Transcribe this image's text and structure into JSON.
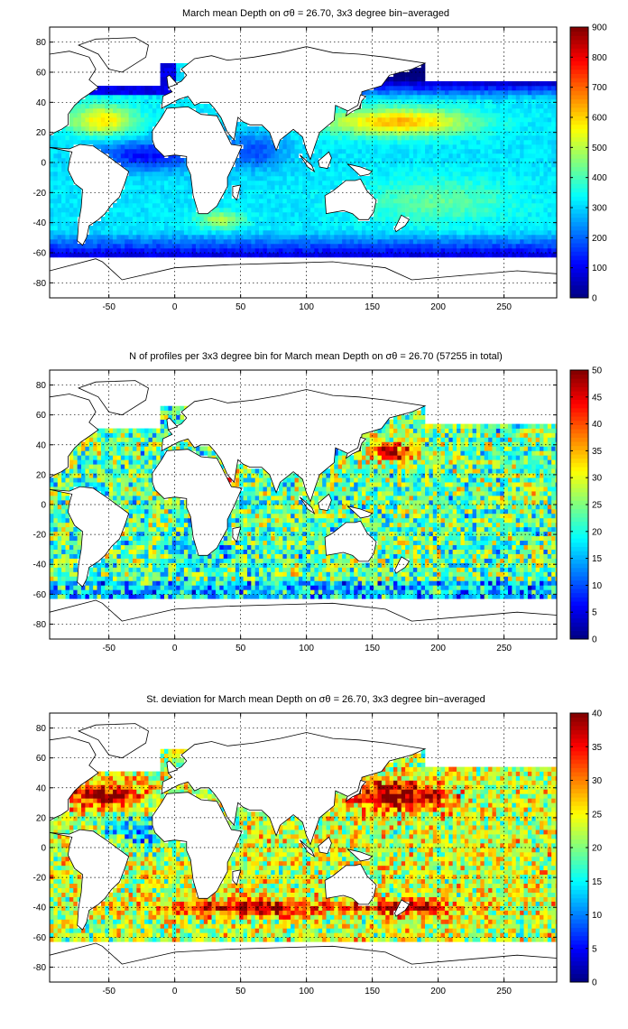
{
  "chart_data": [
    {
      "type": "heatmap",
      "title": "March mean Depth on σθ = 26.70, 3x3 degree bin−averaged",
      "xlim": [
        -95,
        290
      ],
      "ylim": [
        -90,
        90
      ],
      "xticks": [
        -50,
        0,
        50,
        100,
        150,
        200,
        250
      ],
      "yticks": [
        -80,
        -60,
        -40,
        -20,
        0,
        20,
        40,
        60,
        80
      ],
      "colorbar": {
        "min": 0,
        "max": 900,
        "ticks": [
          0,
          100,
          200,
          300,
          400,
          500,
          600,
          700,
          800,
          900
        ],
        "colormap": "jet"
      },
      "grid": true,
      "field": "depth",
      "value_range": [
        0,
        900
      ]
    },
    {
      "type": "heatmap",
      "title": "N of profiles per 3x3 degree bin for March mean Depth on σθ = 26.70 (57255 in total)",
      "xlim": [
        -95,
        290
      ],
      "ylim": [
        -90,
        90
      ],
      "xticks": [
        -50,
        0,
        50,
        100,
        150,
        200,
        250
      ],
      "yticks": [
        -80,
        -60,
        -40,
        -20,
        0,
        20,
        40,
        60,
        80
      ],
      "colorbar": {
        "min": 0,
        "max": 50,
        "ticks": [
          0,
          5,
          10,
          15,
          20,
          25,
          30,
          35,
          40,
          45,
          50
        ],
        "colormap": "jet"
      },
      "grid": true,
      "field": "count",
      "value_range": [
        0,
        50
      ]
    },
    {
      "type": "heatmap",
      "title": "St. deviation for March mean Depth on σθ = 26.70, 3x3 degree bin−averaged",
      "xlim": [
        -95,
        290
      ],
      "ylim": [
        -90,
        90
      ],
      "xticks": [
        -50,
        0,
        50,
        100,
        150,
        200,
        250
      ],
      "yticks": [
        -80,
        -60,
        -40,
        -20,
        0,
        20,
        40,
        60,
        80
      ],
      "colorbar": {
        "min": 0,
        "max": 40,
        "ticks": [
          0,
          5,
          10,
          15,
          20,
          25,
          30,
          35,
          40
        ],
        "colormap": "jet"
      },
      "grid": true,
      "field": "std",
      "value_range": [
        0,
        40
      ]
    }
  ]
}
